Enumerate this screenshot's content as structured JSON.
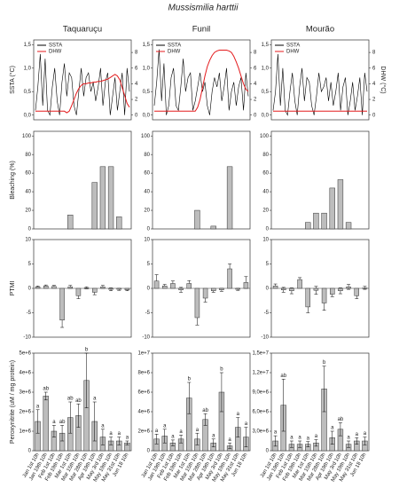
{
  "title": "Mussismilia harttii",
  "columns": [
    "Taquaruçu",
    "Funil",
    "Mourão"
  ],
  "chart_data": [
    {
      "type": "line",
      "ylabel": "SSTA (°C)",
      "ylim": [
        -0.1,
        1.6
      ],
      "yticks": [
        {
          "value": 0,
          "label": "0,0"
        },
        {
          "value": 0.5,
          "label": "0,5"
        },
        {
          "value": 1,
          "label": "1,0"
        },
        {
          "value": 1.5,
          "label": "1,5"
        }
      ],
      "y2lim": [
        -0.6,
        9.6
      ],
      "y2ticks": [
        0,
        2,
        4,
        6,
        8
      ],
      "series": [
        {
          "name": "SSTA",
          "color": "#000000",
          "values": [
            0.1,
            0.6,
            1.3,
            0.2,
            1.2,
            0.1,
            0.0,
            0.6,
            1.0,
            0.3,
            0.0,
            0.7,
            1.1,
            0.4,
            0.9,
            0.8,
            0.2,
            0.0,
            0.5,
            1.0,
            0.4,
            0.8,
            0.9,
            0.5,
            0.7,
            0.3,
            0.6,
            1.0,
            0.2,
            0.7,
            0.9,
            0.0,
            0.4,
            0.8,
            0.1,
            0.5,
            0.9,
            0.0,
            1.0,
            0.5
          ]
        },
        {
          "name": "DHW",
          "color": "#e41a1c",
          "axis": "y2",
          "values": [
            0.5,
            0.5,
            0.5,
            0.5,
            0.5,
            0.5,
            0.5,
            0.5,
            0.5,
            0.5,
            0.5,
            0.5,
            0.5,
            0.3,
            0.5,
            1.2,
            2.0,
            2.8,
            3.4,
            3.8,
            4.0,
            4.0,
            4.1,
            4.1,
            4.2,
            4.2,
            4.3,
            4.3,
            4.4,
            4.5,
            4.6,
            4.8,
            5.0,
            5.2,
            5.0,
            4.5,
            3.5,
            2.5,
            1.5,
            1.0
          ]
        }
      ]
    },
    {
      "type": "line",
      "ylim": [
        -0.1,
        1.6
      ],
      "yticks": [
        {
          "value": 0,
          "label": "0,0"
        },
        {
          "value": 0.5,
          "label": "0,5"
        },
        {
          "value": 1,
          "label": "1,0"
        },
        {
          "value": 1.5,
          "label": "1,5"
        }
      ],
      "y2lim": [
        -0.6,
        9.6
      ],
      "y2ticks": [
        0,
        2,
        4,
        6,
        8
      ],
      "series": [
        {
          "name": "SSTA",
          "color": "#000000",
          "values": [
            0.2,
            0.7,
            1.4,
            0.3,
            1.1,
            0.0,
            0.2,
            0.8,
            1.0,
            0.2,
            0.1,
            0.6,
            1.2,
            0.5,
            0.8,
            0.9,
            0.1,
            0.3,
            0.6,
            0.9,
            0.5,
            0.7,
            0.2,
            0.0,
            0.5,
            0.8,
            0.6,
            0.9,
            0.3,
            0.6,
            1.0,
            0.1,
            0.5,
            0.7,
            0.2,
            0.6,
            0.8,
            0.1,
            0.9,
            0.4
          ]
        },
        {
          "name": "DHW",
          "color": "#e41a1c",
          "axis": "y2",
          "values": [
            0.5,
            0.5,
            0.5,
            0.5,
            0.5,
            0.5,
            0.5,
            0.5,
            0.5,
            0.5,
            0.5,
            0.5,
            0.5,
            0.5,
            0.5,
            0.5,
            0.5,
            0.5,
            1.0,
            2.0,
            3.5,
            5.0,
            6.2,
            7.0,
            7.6,
            8.0,
            8.2,
            8.3,
            8.3,
            8.3,
            8.3,
            8.2,
            8.0,
            7.5,
            6.8,
            6.0,
            5.0,
            4.0,
            3.3,
            3.0
          ]
        }
      ]
    },
    {
      "type": "line",
      "y2label": "DHW (°C)",
      "ylim": [
        -0.1,
        1.6
      ],
      "yticks": [
        {
          "value": 0,
          "label": "0,0"
        },
        {
          "value": 0.5,
          "label": "0,5"
        },
        {
          "value": 1,
          "label": "1,0"
        },
        {
          "value": 1.5,
          "label": "1,5"
        }
      ],
      "y2lim": [
        -0.6,
        9.6
      ],
      "y2ticks": [
        0,
        2,
        4,
        6,
        8
      ],
      "series": [
        {
          "name": "SSTA",
          "color": "#000000",
          "values": [
            0.1,
            0.5,
            1.3,
            0.2,
            1.0,
            0.1,
            0.0,
            0.5,
            0.9,
            0.3,
            0.0,
            0.6,
            1.0,
            0.3,
            0.8,
            0.7,
            0.2,
            0.0,
            0.4,
            0.9,
            0.5,
            0.6,
            0.8,
            0.3,
            0.7,
            0.2,
            0.5,
            0.9,
            0.1,
            0.6,
            0.8,
            0.0,
            0.3,
            0.7,
            0.1,
            0.4,
            0.8,
            0.0,
            0.9,
            0.5
          ]
        },
        {
          "name": "DHW",
          "color": "#e41a1c",
          "axis": "y2",
          "values": [
            0.5,
            0.5,
            0.5,
            0.5,
            0.5,
            0.5,
            0.5,
            0.5,
            0.5,
            0.5,
            0.5,
            0.5,
            0.5,
            0.5,
            0.5,
            0.5,
            0.5,
            0.5,
            0.5,
            0.5,
            0.5,
            0.5,
            0.5,
            0.5,
            0.5,
            0.5,
            0.5,
            0.5,
            0.5,
            0.5,
            0.5,
            0.5,
            0.5,
            0.5,
            0.5,
            0.5,
            0.5,
            0.5,
            0.5,
            0.5
          ]
        }
      ]
    },
    {
      "type": "bar",
      "ylabel": "Bleaching (%)",
      "ylim": [
        0,
        105
      ],
      "yticks": [
        0,
        20,
        40,
        60,
        80,
        100
      ],
      "color": "#bdbdbd",
      "values": [
        0,
        0,
        0,
        0,
        15,
        0,
        0,
        50,
        67,
        67,
        13,
        0
      ]
    },
    {
      "type": "bar",
      "ylim": [
        0,
        105
      ],
      "yticks": [
        0,
        20,
        40,
        60,
        80,
        100
      ],
      "color": "#bdbdbd",
      "values": [
        0,
        0,
        0,
        0,
        0,
        20,
        0,
        3,
        0,
        67,
        0,
        0
      ]
    },
    {
      "type": "bar",
      "ylim": [
        0,
        105
      ],
      "yticks": [
        0,
        20,
        40,
        60,
        80,
        100
      ],
      "color": "#bdbdbd",
      "values": [
        0,
        0,
        0,
        0,
        7,
        17,
        17,
        44,
        53,
        7,
        0,
        0
      ]
    },
    {
      "type": "errorbar",
      "ylabel": "PTMI",
      "ylim": [
        -10,
        10
      ],
      "yticks": [
        -10,
        -5,
        0,
        5,
        10
      ],
      "color": "#000000",
      "values": [
        0.3,
        0.5,
        0.4,
        -6.5,
        0.3,
        -1.5,
        0.1,
        -0.8,
        0.3,
        -0.2,
        -0.2,
        -0.3
      ],
      "errors": [
        0.2,
        0.2,
        0.2,
        1.5,
        0.3,
        0.6,
        0.2,
        0.5,
        0.3,
        0.3,
        0.2,
        0.2
      ]
    },
    {
      "type": "errorbar",
      "ylim": [
        -10,
        10
      ],
      "yticks": [
        -10,
        -5,
        0,
        5,
        10
      ],
      "color": "#000000",
      "values": [
        1.5,
        0.5,
        1.0,
        -0.3,
        1.0,
        -6.0,
        -2.0,
        -0.5,
        -0.3,
        4.0,
        -0.2,
        1.2
      ],
      "errors": [
        1.3,
        0.3,
        0.5,
        0.5,
        0.6,
        1.5,
        0.8,
        0.3,
        0.3,
        1.0,
        0.2,
        1.2
      ]
    },
    {
      "type": "errorbar",
      "ylim": [
        -10,
        10
      ],
      "yticks": [
        -10,
        -5,
        0,
        5,
        10
      ],
      "color": "#000000",
      "values": [
        0.5,
        -0.3,
        -0.5,
        1.8,
        -3.8,
        -0.4,
        -3.0,
        -1.2,
        -0.5,
        0.3,
        -1.5,
        0.1
      ],
      "errors": [
        0.4,
        0.5,
        0.6,
        0.4,
        1.2,
        0.8,
        1.5,
        0.5,
        0.6,
        0.5,
        0.6,
        0.3
      ]
    },
    {
      "type": "bar",
      "ylabel": "Peroxynitrite (uM / mg protein)",
      "ylim": [
        0,
        5000000
      ],
      "yticks": [
        0,
        {
          "value": 1000000,
          "label": "1e+6"
        },
        {
          "value": 2000000,
          "label": "2e+6"
        },
        {
          "value": 3000000,
          "label": "3e+6"
        },
        {
          "value": 4000000,
          "label": "4e+6"
        },
        {
          "value": 5000000,
          "label": "5e+6"
        }
      ],
      "color": "#bdbdbd",
      "categories": [
        "Jan 1st 10h",
        "Jan 19th 10h",
        "Feb 1st 10h",
        "Feb 19th 10h",
        "Mar 1st 10h",
        "Mar 15th 10h",
        "Mar 28th 10h",
        "Apr 19th 10h",
        "May 3rd 10h",
        "May 19th 10h",
        "May 31st 10h",
        "Jun 18 10h"
      ],
      "values": [
        1500000,
        2800000,
        1000000,
        900000,
        1700000,
        1800000,
        3600000,
        1500000,
        700000,
        500000,
        500000,
        400000
      ],
      "errors": [
        600000,
        200000,
        300000,
        400000,
        800000,
        600000,
        1400000,
        1000000,
        400000,
        200000,
        200000,
        100000
      ],
      "letters": [
        "a",
        "ab",
        "a",
        "ab",
        "ab",
        "ab",
        "b",
        "a",
        "a",
        "a",
        "a",
        "a"
      ]
    },
    {
      "type": "bar",
      "ylim": [
        0,
        10000000
      ],
      "yticks": [
        0,
        {
          "value": 2000000,
          "label": "2e+6"
        },
        {
          "value": 4000000,
          "label": "4e+6"
        },
        {
          "value": 6000000,
          "label": "6e+6"
        },
        {
          "value": 8000000,
          "label": "8e+6"
        },
        {
          "value": 10000000,
          "label": "1e+7"
        }
      ],
      "color": "#bdbdbd",
      "categories": [
        "Jan 1st 10h",
        "Jan 19th 10h",
        "Feb 1st 10h",
        "Feb 19th 10h",
        "Mar 1st 10h",
        "Mar 15th 10h",
        "Mar 28th 10h",
        "Apr 19th 10h",
        "May 3rd 10h",
        "May 19th 10h",
        "May 31st 10h",
        "Jun 18 10h"
      ],
      "values": [
        1200000,
        1500000,
        800000,
        1200000,
        5400000,
        1200000,
        3200000,
        800000,
        6000000,
        500000,
        2400000,
        1400000
      ],
      "errors": [
        500000,
        700000,
        300000,
        400000,
        1600000,
        600000,
        600000,
        400000,
        2000000,
        300000,
        1000000,
        1000000
      ],
      "letters": [
        "a",
        "a",
        "a",
        "a",
        "b",
        "a",
        "ab",
        "a",
        "b",
        "a",
        "a",
        "a"
      ]
    },
    {
      "type": "bar",
      "ylim": [
        0,
        15000000
      ],
      "yticks": [
        0,
        {
          "value": 3000000,
          "label": "3,0e+6"
        },
        {
          "value": 6000000,
          "label": "6,0e+6"
        },
        {
          "value": 9000000,
          "label": "9,0e+6"
        },
        {
          "value": 12000000,
          "label": "1,2e+7"
        },
        {
          "value": 15000000,
          "label": "1,5e+7"
        }
      ],
      "color": "#bdbdbd",
      "categories": [
        "Jan 1st 10h",
        "Jan 19th 10h",
        "Feb 1st 10h",
        "Feb 19th 10h",
        "Mar 1st 10h",
        "Mar 15th 10h",
        "Mar 28th 10h",
        "Apr 19th 10h",
        "May 3rd 10h",
        "May 19th 10h",
        "May 31st 10h",
        "Jun 18 10h"
      ],
      "values": [
        1500000,
        7000000,
        1000000,
        1000000,
        1000000,
        1200000,
        9500000,
        2000000,
        3300000,
        1000000,
        1500000,
        1500000
      ],
      "errors": [
        800000,
        4000000,
        500000,
        500000,
        400000,
        500000,
        3500000,
        1000000,
        1000000,
        500000,
        500000,
        600000
      ],
      "letters": [
        "a",
        "ab",
        "a",
        "a",
        "a",
        "a",
        "b",
        "a",
        "ab",
        "a",
        "a",
        "a"
      ]
    }
  ]
}
